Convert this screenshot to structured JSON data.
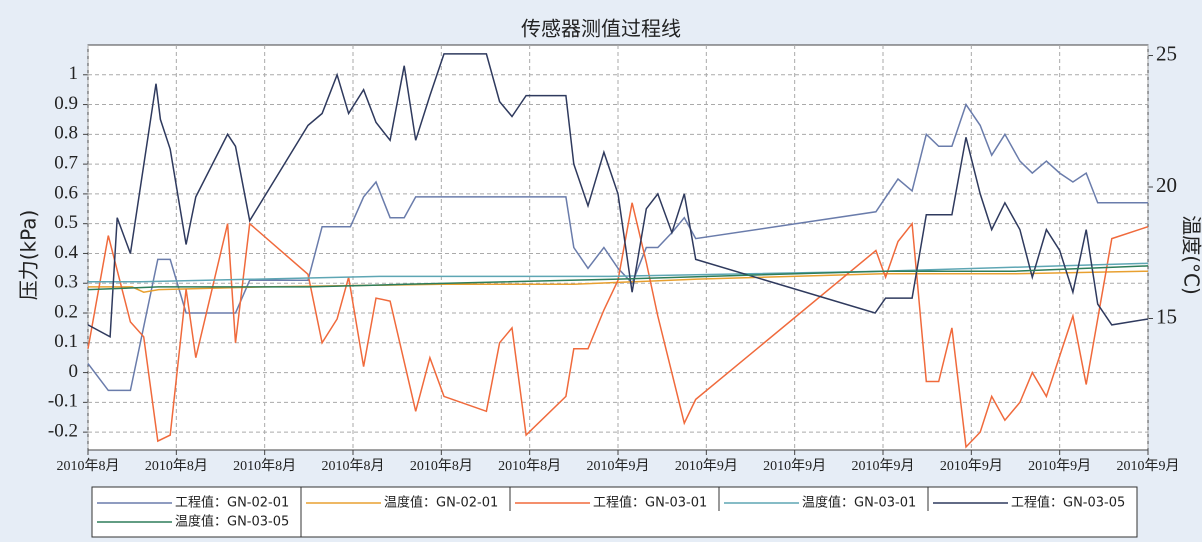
{
  "chart_data": {
    "type": "line",
    "title": "传感器测值过程线",
    "y_label": "压力(kPa)",
    "y2_label": "温度(°C)",
    "xlim": [
      0,
      12
    ],
    "xticks": [
      {
        "value": 0,
        "label": "2010年8月"
      },
      {
        "value": 1,
        "label": "2010年8月"
      },
      {
        "value": 2,
        "label": "2010年8月"
      },
      {
        "value": 3,
        "label": "2010年8月"
      },
      {
        "value": 4,
        "label": "2010年8月"
      },
      {
        "value": 5,
        "label": "2010年8月"
      },
      {
        "value": 6,
        "label": "2010年9月"
      },
      {
        "value": 7,
        "label": "2010年9月"
      },
      {
        "value": 8,
        "label": "2010年9月"
      },
      {
        "value": 9,
        "label": "2010年9月"
      },
      {
        "value": 10,
        "label": "2010年9月"
      },
      {
        "value": 11,
        "label": "2010年9月"
      },
      {
        "value": 12,
        "label": "2010年9月"
      }
    ],
    "ylim": [
      -0.26,
      1.1
    ],
    "yticks": [
      -0.2,
      -0.1,
      0,
      0.1,
      0.2,
      0.3,
      0.4,
      0.5,
      0.6,
      0.7,
      0.8,
      0.9,
      1
    ],
    "y2lim": [
      10,
      25.4
    ],
    "y2ticks": [
      15,
      20,
      25
    ],
    "grid": true,
    "legend_position": "bottom",
    "series": [
      {
        "name": "工程值：GN-02-01",
        "color": "#6a7cab",
        "x": [
          0,
          0.23,
          0.48,
          0.79,
          0.93,
          1.11,
          1.67,
          1.83,
          2.49,
          2.65,
          2.97,
          3.12,
          3.26,
          3.42,
          3.58,
          3.71,
          5.41,
          5.5,
          5.66,
          5.84,
          6,
          6.16,
          6.32,
          6.45,
          6.61,
          6.75,
          6.88,
          8.92,
          9.17,
          9.33,
          9.49,
          9.63,
          9.78,
          9.94,
          10.1,
          10.23,
          10.38,
          10.55,
          10.69,
          10.85,
          11,
          11.15,
          11.3,
          11.43,
          12
        ],
        "values": [
          0.03,
          -0.06,
          -0.06,
          0.38,
          0.38,
          0.2,
          0.2,
          0.31,
          0.31,
          0.49,
          0.49,
          0.59,
          0.64,
          0.52,
          0.52,
          0.59,
          0.59,
          0.42,
          0.35,
          0.42,
          0.35,
          0.3,
          0.42,
          0.42,
          0.47,
          0.52,
          0.45,
          0.54,
          0.65,
          0.61,
          0.8,
          0.76,
          0.76,
          0.9,
          0.83,
          0.73,
          0.8,
          0.71,
          0.67,
          0.71,
          0.67,
          0.64,
          0.67,
          0.57,
          0.57
        ]
      },
      {
        "name": "温度值：GN-02-01",
        "color": "#e8a030",
        "axis": "y2",
        "x": [
          0,
          0.5,
          0.63,
          0.8,
          2,
          4,
          5.5,
          6.9,
          9,
          10.5,
          12
        ],
        "values": [
          16.2,
          16.2,
          16.0,
          16.1,
          16.2,
          16.3,
          16.3,
          16.5,
          16.7,
          16.7,
          16.8
        ]
      },
      {
        "name": "工程值：GN-03-01",
        "color": "#f06a3c",
        "x": [
          0,
          0.23,
          0.48,
          0.63,
          0.79,
          0.93,
          1.11,
          1.22,
          1.58,
          1.67,
          1.83,
          2.49,
          2.65,
          2.82,
          2.95,
          3.12,
          3.26,
          3.42,
          3.71,
          3.87,
          4.03,
          4.51,
          4.66,
          4.8,
          4.96,
          5.41,
          5.5,
          5.66,
          5.84,
          6,
          6.16,
          6.32,
          6.45,
          6.75,
          6.88,
          8.92,
          9.03,
          9.17,
          9.33,
          9.49,
          9.63,
          9.78,
          9.94,
          10.1,
          10.23,
          10.38,
          10.55,
          10.69,
          10.85,
          11.15,
          11.3,
          11.59,
          12
        ],
        "values": [
          0.08,
          0.46,
          0.17,
          0.12,
          -0.23,
          -0.21,
          0.28,
          0.05,
          0.5,
          0.1,
          0.5,
          0.33,
          0.1,
          0.18,
          0.32,
          0.02,
          0.25,
          0.24,
          -0.13,
          0.05,
          -0.08,
          -0.13,
          0.1,
          0.15,
          -0.21,
          -0.08,
          0.08,
          0.08,
          0.21,
          0.31,
          0.57,
          0.37,
          0.19,
          -0.17,
          -0.09,
          0.41,
          0.32,
          0.44,
          0.5,
          -0.03,
          -0.03,
          0.15,
          -0.25,
          -0.2,
          -0.08,
          -0.16,
          -0.1,
          0,
          -0.08,
          0.19,
          -0.04,
          0.45,
          0.49
        ]
      },
      {
        "name": "温度值：GN-03-01",
        "color": "#5ea6b4",
        "axis": "y2",
        "x": [
          0,
          0.6,
          3.3,
          5.9,
          9,
          11,
          12
        ],
        "values": [
          16.4,
          16.4,
          16.6,
          16.6,
          16.8,
          17.0,
          17.1
        ]
      },
      {
        "name": "工程值：GN-03-05",
        "color": "#2f3a5e",
        "x": [
          0,
          0.25,
          0.33,
          0.48,
          0.77,
          0.82,
          0.93,
          1.11,
          1.22,
          1.58,
          1.67,
          1.83,
          2.49,
          2.65,
          2.82,
          2.95,
          3.12,
          3.26,
          3.42,
          3.58,
          3.71,
          3.87,
          4.03,
          4.51,
          4.66,
          4.8,
          4.96,
          5.41,
          5.5,
          5.66,
          5.84,
          6,
          6.16,
          6.32,
          6.45,
          6.61,
          6.75,
          6.88,
          8.91,
          9.03,
          9.33,
          9.49,
          9.78,
          9.94,
          10.1,
          10.23,
          10.38,
          10.55,
          10.69,
          10.85,
          11,
          11.15,
          11.3,
          11.43,
          11.59,
          12
        ],
        "values": [
          0.16,
          0.12,
          0.52,
          0.4,
          0.97,
          0.85,
          0.75,
          0.43,
          0.59,
          0.8,
          0.76,
          0.51,
          0.83,
          0.87,
          1,
          0.87,
          0.95,
          0.84,
          0.78,
          1.03,
          0.78,
          0.93,
          1.07,
          1.07,
          0.91,
          0.86,
          0.93,
          0.93,
          0.7,
          0.56,
          0.74,
          0.6,
          0.27,
          0.55,
          0.6,
          0.47,
          0.6,
          0.38,
          0.2,
          0.25,
          0.25,
          0.53,
          0.53,
          0.79,
          0.6,
          0.48,
          0.57,
          0.48,
          0.32,
          0.48,
          0.41,
          0.27,
          0.48,
          0.23,
          0.16,
          0.18
        ]
      },
      {
        "name": "温度值：GN-03-05",
        "color": "#2e7d5a",
        "axis": "y2",
        "x": [
          0,
          0.8,
          2.5,
          3.6,
          6,
          9,
          10.5,
          12
        ],
        "values": [
          16.1,
          16.2,
          16.2,
          16.3,
          16.5,
          16.8,
          16.8,
          17.0
        ]
      }
    ]
  }
}
